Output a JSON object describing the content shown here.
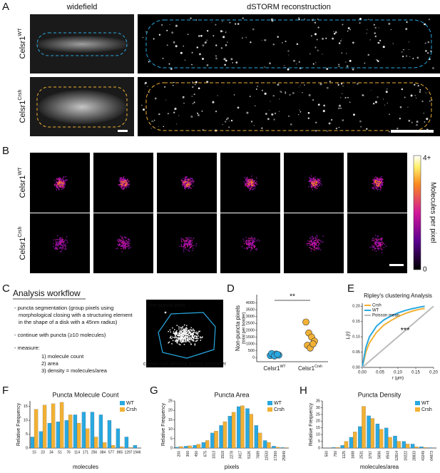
{
  "panel_labels": [
    "A",
    "B",
    "C",
    "D",
    "E",
    "F",
    "G",
    "H"
  ],
  "panel_a": {
    "col_titles": [
      "widefield",
      "dSTORM reconstruction"
    ],
    "rows": [
      {
        "base": "Celsr1",
        "sup": "WT"
      },
      {
        "base": "Celsr1",
        "sup": "Crsh"
      }
    ]
  },
  "panel_b": {
    "rows": [
      {
        "base": "Celsr1",
        "sup": "WT"
      },
      {
        "base": "Celsr1",
        "sup": "Crsh"
      }
    ],
    "colorbar": {
      "max_label": "4+",
      "min_label": "0",
      "title": "Molecules per pixel"
    }
  },
  "panel_c": {
    "title": "Analysis workflow",
    "lines": [
      "- puncta segmentation (group pixels using",
      "morphological closing with a structuring element",
      "in the shape of a disk with a 45nm radius)",
      "- continue with puncta (≥10 molecules)",
      "- measure:",
      "1) molecule count",
      "2) area",
      "3) density = molecules/area"
    ],
    "inset": {
      "top_label": "non-puncta pixel",
      "bottom_label": "convex hull defining puncta perimeter"
    }
  },
  "chart_data": [
    {
      "type": "scatter",
      "ylabel": [
        "Non-puncta pixels",
        "(total per border)"
      ],
      "categories": [
        {
          "base": "Celsr1",
          "sup": "WT"
        },
        {
          "base": "Celsr1",
          "sup": "Crsh"
        }
      ],
      "series": [
        {
          "color": "#29a8e0",
          "values": [
            150,
            220,
            260,
            180,
            300,
            120,
            240
          ]
        },
        {
          "color": "#f2b134",
          "values": [
            2600,
            1800,
            1500,
            1200,
            900,
            700,
            1000
          ]
        }
      ],
      "ylim": [
        -300,
        4600
      ],
      "yticks": [
        0,
        500,
        1000,
        1500,
        2000,
        2500,
        3000,
        3500,
        4000
      ],
      "annotation": "**"
    },
    {
      "type": "line",
      "title": "Ripley's clustering Analysis",
      "ylabel": "L(r)",
      "xlabel": "r (μm)",
      "xlim": [
        0,
        0.2
      ],
      "ylim": [
        0,
        0.21
      ],
      "xticks": [
        {
          "value": 0,
          "label": "0.00"
        },
        {
          "value": 0.05,
          "label": "0.05"
        },
        {
          "value": 0.1,
          "label": "0.10"
        },
        {
          "value": 0.15,
          "label": "0.15"
        },
        {
          "value": 0.2,
          "label": "0.20"
        }
      ],
      "yticks": [
        {
          "value": 0,
          "label": "0.00"
        },
        {
          "value": 0.05,
          "label": "0.05"
        },
        {
          "value": 0.1,
          "label": "0.10"
        },
        {
          "value": 0.15,
          "label": "0.15"
        },
        {
          "value": 0.2,
          "label": "0.20"
        }
      ],
      "series": [
        {
          "name": "Crsh",
          "color": "#f2b134",
          "x": [
            0,
            0.01,
            0.02,
            0.04,
            0.06,
            0.08,
            0.1,
            0.12,
            0.14,
            0.16,
            0.175
          ],
          "values": [
            0,
            0.05,
            0.08,
            0.115,
            0.138,
            0.153,
            0.166,
            0.176,
            0.184,
            0.19,
            0.193
          ]
        },
        {
          "name": "WT",
          "color": "#29a8e0",
          "x": [
            0,
            0.01,
            0.02,
            0.04,
            0.06,
            0.08,
            0.1,
            0.12,
            0.14,
            0.16,
            0.175
          ],
          "values": [
            0,
            0.065,
            0.1,
            0.135,
            0.155,
            0.168,
            0.178,
            0.186,
            0.192,
            0.197,
            0.2
          ]
        },
        {
          "name": "Poisson mean",
          "color": "#bbbbbb",
          "x": [
            0,
            0.2
          ],
          "values": [
            0,
            0.2
          ]
        }
      ],
      "legend": "upper left",
      "annotation": "***"
    },
    {
      "type": "bar",
      "title": "Puncta Molecule Count",
      "xlabel": "molecules",
      "ylabel": "Relative Frequency",
      "categories": [
        "15",
        "23",
        "34",
        "51",
        "76",
        "114",
        "171",
        "256",
        "384",
        "577",
        "865",
        "1297",
        "1946"
      ],
      "series": [
        {
          "name": "WT",
          "color": "#29a8e0",
          "values": [
            4,
            6,
            9,
            9.5,
            10,
            12,
            13,
            13,
            12,
            10,
            7,
            4,
            1
          ]
        },
        {
          "name": "Crsh",
          "color": "#f2b134",
          "values": [
            14,
            15.5,
            16,
            16.5,
            12,
            9,
            7,
            4,
            2,
            1,
            0.5,
            0.2,
            0
          ]
        }
      ],
      "ylim": [
        0,
        17
      ],
      "yticks": [
        0,
        5,
        10,
        15
      ],
      "legend": "upper right"
    },
    {
      "type": "bar",
      "title": "Puncta Area",
      "xlabel": "pixels",
      "ylabel": "Relative Frequency",
      "categories": [
        "200",
        "300",
        "450",
        "675",
        "1013",
        "1519",
        "2278",
        "3417",
        "5126",
        "7689",
        "11533",
        "17300",
        "25949"
      ],
      "series": [
        {
          "name": "WT",
          "color": "#29a8e0",
          "values": [
            0.5,
            1,
            1.5,
            3,
            8,
            12,
            17,
            22,
            21,
            12,
            4,
            1,
            0.3
          ]
        },
        {
          "name": "Crsh",
          "color": "#f2b134",
          "values": [
            0.8,
            1.2,
            2,
            4,
            9,
            14,
            19,
            22.5,
            18,
            8,
            3,
            0.5,
            0.2
          ]
        }
      ],
      "ylim": [
        0,
        25
      ],
      "yticks": [
        0,
        5,
        10,
        15,
        20,
        25
      ],
      "legend": "upper right"
    },
    {
      "type": "bar",
      "title": "Puncta Density",
      "xlabel": "molecules/area",
      "ylabel": "Relative Frequency",
      "categories": [
        "500",
        "750",
        "1125",
        "1688",
        "2531",
        "3797",
        "5696",
        "8543",
        "12814",
        "19222",
        "28833",
        "43249",
        "64873"
      ],
      "series": [
        {
          "name": "WT",
          "color": "#29a8e0",
          "values": [
            0,
            0.5,
            2,
            8,
            16,
            24,
            18,
            15,
            9,
            5,
            3,
            1,
            0.3
          ]
        },
        {
          "name": "Crsh",
          "color": "#f2b134",
          "values": [
            0,
            0.5,
            5,
            12,
            31,
            22,
            14,
            8,
            5,
            3,
            1,
            0.5,
            0
          ]
        }
      ],
      "ylim": [
        0,
        35
      ],
      "yticks": [
        0,
        5,
        10,
        15,
        20,
        25,
        30,
        35
      ],
      "legend": "upper right"
    }
  ]
}
